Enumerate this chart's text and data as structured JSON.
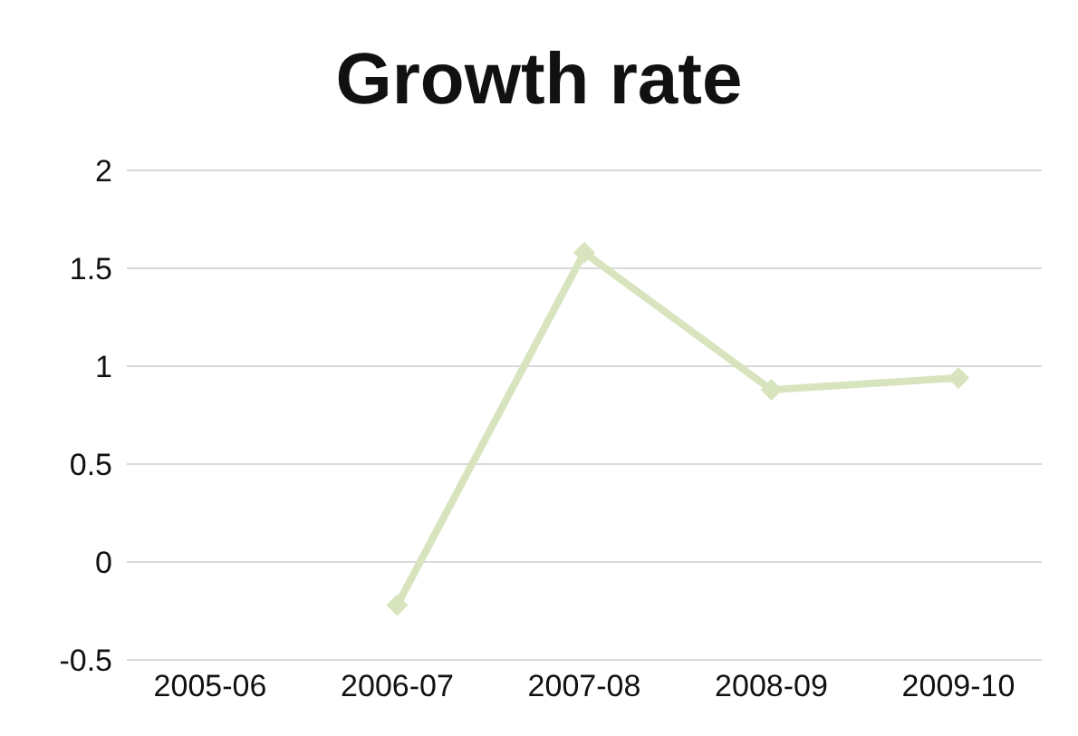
{
  "chart_data": {
    "type": "line",
    "title": "Growth rate",
    "categories": [
      "2005-06",
      "2006-07",
      "2007-08",
      "2008-09",
      "2009-10"
    ],
    "series": [
      {
        "color": "#d7e4bd",
        "values": [
          null,
          -0.22,
          1.58,
          0.88,
          0.94
        ]
      }
    ],
    "ylim": [
      -0.5,
      2
    ],
    "yticks": [
      -0.5,
      0,
      0.5,
      1,
      1.5,
      2
    ],
    "grid": "y",
    "marker": "diamond",
    "line_style": "solid",
    "legend": false
  }
}
